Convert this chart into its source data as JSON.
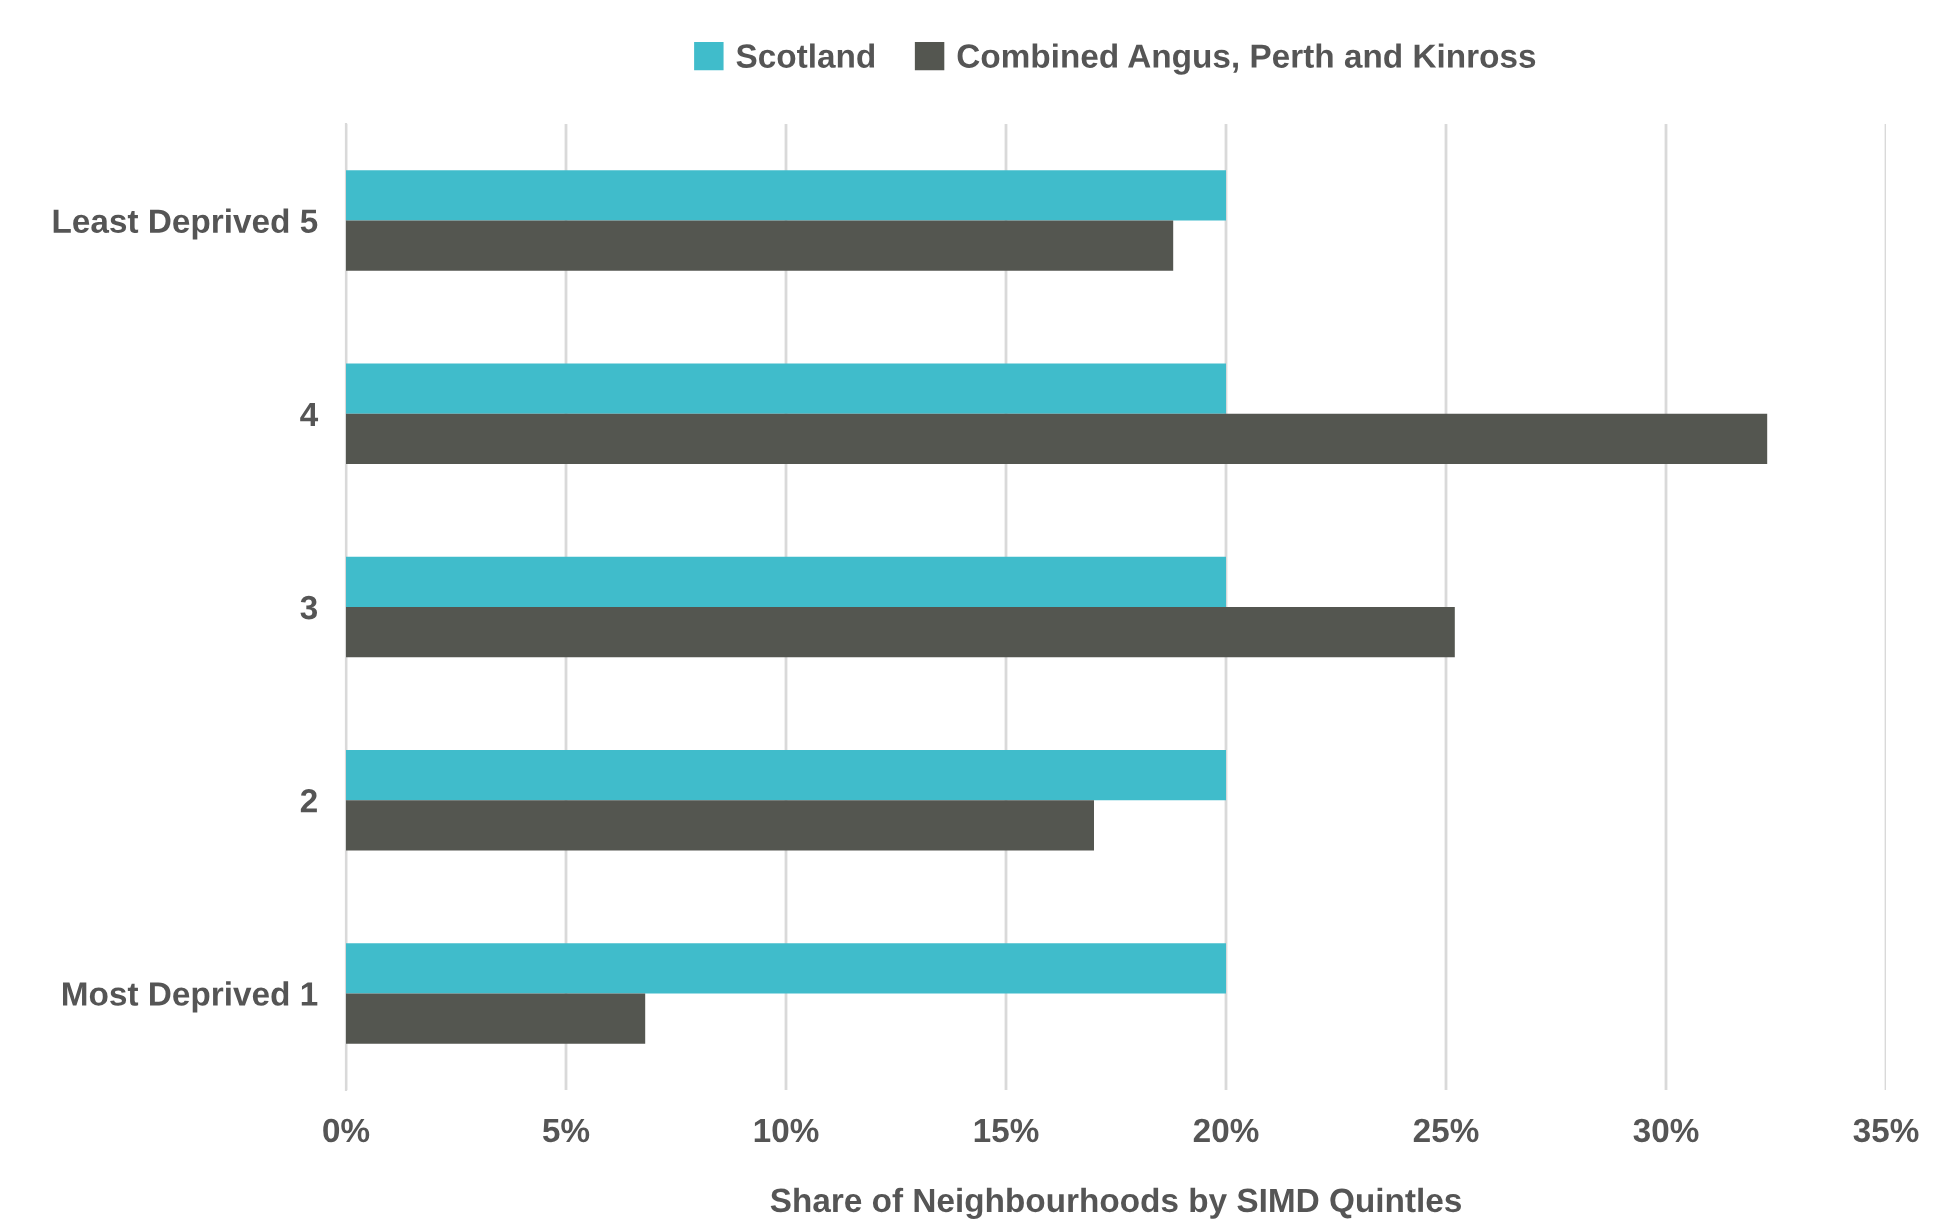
{
  "chart_data": {
    "type": "bar",
    "orientation": "horizontal",
    "xlabel": "Share of Neighbourhoods by SIMD Quintles",
    "categories": [
      "Least Deprived 5",
      "4",
      "3",
      "2",
      "Most Deprived 1"
    ],
    "series": [
      {
        "name": "Scotland",
        "color": "#40bccb",
        "values": [
          20,
          20,
          20,
          20,
          20
        ]
      },
      {
        "name": "Combined Angus, Perth and Kinross",
        "color": "#545650",
        "values": [
          18.8,
          32.3,
          25.2,
          17.0,
          6.8
        ]
      }
    ],
    "xlim": [
      0,
      35
    ],
    "xticks": [
      {
        "value": 0,
        "label": "0%"
      },
      {
        "value": 5,
        "label": "5%"
      },
      {
        "value": 10,
        "label": "10%"
      },
      {
        "value": 15,
        "label": "15%"
      },
      {
        "value": 20,
        "label": "20%"
      },
      {
        "value": 25,
        "label": "25%"
      },
      {
        "value": 30,
        "label": "30%"
      },
      {
        "value": 35,
        "label": "35%"
      }
    ],
    "grid": "x",
    "legend": "top"
  }
}
